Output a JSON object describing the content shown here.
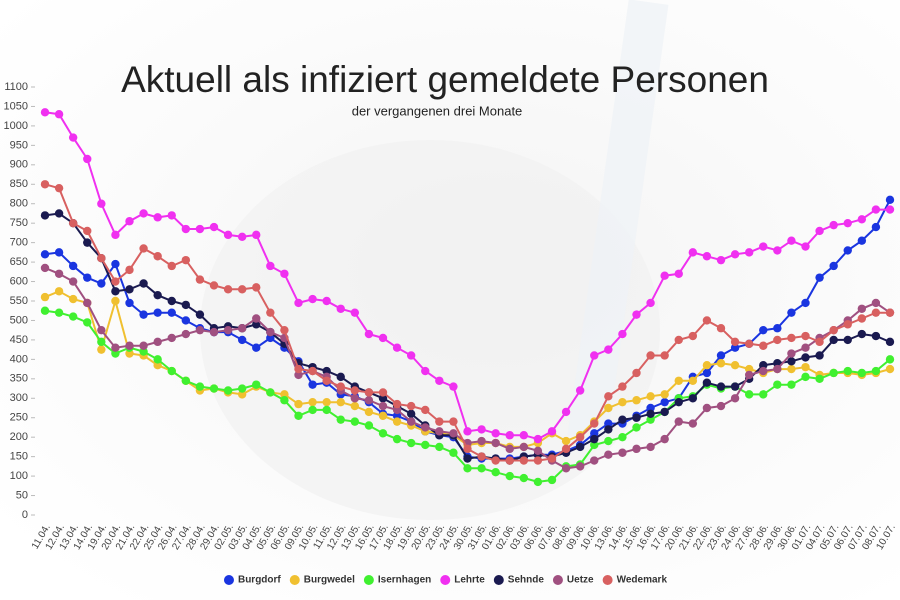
{
  "chart_data": {
    "type": "line",
    "title": "Aktuell als infiziert gemeldete Personen",
    "subtitle": "der vergangenen drei Monate",
    "categories": [
      "11.04.",
      "12.04.",
      "13.04.",
      "14.04.",
      "19.04.",
      "20.04.",
      "21.04.",
      "22.04.",
      "25.04.",
      "26.04.",
      "27.04.",
      "28.04.",
      "29.04.",
      "02.05.",
      "03.05.",
      "04.05.",
      "05.05.",
      "06.05.",
      "09.05.",
      "10.05.",
      "11.05.",
      "12.05.",
      "13.05.",
      "16.05.",
      "17.05.",
      "18.05.",
      "19.05.",
      "20.05.",
      "23.05.",
      "24.05.",
      "30.05.",
      "31.05.",
      "01.06.",
      "02.06.",
      "03.06.",
      "06.06.",
      "07.06.",
      "08.06.",
      "09.06.",
      "10.06.",
      "13.06.",
      "14.06.",
      "15.06.",
      "16.06.",
      "17.06.",
      "20.06.",
      "21.06.",
      "22.06.",
      "23.06.",
      "24.06.",
      "27.06.",
      "28.06.",
      "29.06.",
      "30.06.",
      "01.07.",
      "04.07.",
      "05.07.",
      "06.07.",
      "07.07.",
      "08.07.",
      "10.07."
    ],
    "series": [
      {
        "name": "Burgdorf",
        "color": "#1a35e0",
        "values": [
          670,
          675,
          640,
          610,
          595,
          645,
          545,
          515,
          520,
          520,
          500,
          480,
          470,
          470,
          450,
          430,
          455,
          430,
          395,
          335,
          340,
          310,
          305,
          290,
          260,
          255,
          240,
          215,
          205,
          200,
          150,
          145,
          145,
          145,
          150,
          155,
          155,
          165,
          180,
          210,
          235,
          235,
          255,
          275,
          290,
          300,
          355,
          365,
          410,
          430,
          440,
          475,
          480,
          520,
          545,
          610,
          640,
          680,
          705,
          740,
          810
        ]
      },
      {
        "name": "Burgwedel",
        "color": "#f0c030",
        "values": [
          560,
          575,
          555,
          545,
          425,
          550,
          415,
          410,
          385,
          370,
          345,
          320,
          325,
          315,
          310,
          330,
          315,
          310,
          285,
          290,
          290,
          290,
          280,
          265,
          255,
          240,
          230,
          215,
          210,
          205,
          180,
          185,
          185,
          175,
          175,
          185,
          210,
          190,
          205,
          240,
          275,
          290,
          295,
          305,
          310,
          345,
          345,
          385,
          390,
          385,
          375,
          365,
          375,
          375,
          380,
          360,
          365,
          365,
          360,
          365,
          375
        ]
      },
      {
        "name": "Isernhagen",
        "color": "#40f030",
        "values": [
          525,
          520,
          510,
          495,
          445,
          415,
          430,
          420,
          400,
          370,
          345,
          330,
          325,
          320,
          325,
          335,
          315,
          295,
          255,
          270,
          270,
          245,
          240,
          230,
          210,
          195,
          185,
          180,
          175,
          160,
          120,
          120,
          110,
          100,
          95,
          85,
          90,
          125,
          130,
          180,
          190,
          200,
          225,
          245,
          265,
          300,
          305,
          335,
          325,
          330,
          310,
          310,
          335,
          335,
          355,
          350,
          365,
          370,
          365,
          370,
          400
        ]
      },
      {
        "name": "Lehrte",
        "color": "#f030f0",
        "values": [
          1035,
          1030,
          970,
          915,
          800,
          720,
          755,
          775,
          765,
          770,
          735,
          735,
          740,
          720,
          715,
          720,
          640,
          620,
          545,
          555,
          550,
          530,
          520,
          465,
          455,
          430,
          410,
          370,
          345,
          330,
          215,
          220,
          210,
          205,
          205,
          195,
          215,
          265,
          320,
          410,
          425,
          465,
          515,
          545,
          615,
          620,
          675,
          665,
          655,
          670,
          675,
          690,
          680,
          705,
          690,
          730,
          745,
          750,
          760,
          785,
          785
        ]
      },
      {
        "name": "Sehnde",
        "color": "#1a1a50",
        "values": [
          770,
          775,
          750,
          700,
          660,
          575,
          580,
          595,
          565,
          550,
          540,
          515,
          480,
          485,
          480,
          490,
          470,
          440,
          390,
          380,
          370,
          355,
          330,
          315,
          300,
          280,
          260,
          230,
          205,
          205,
          145,
          150,
          145,
          140,
          150,
          155,
          150,
          160,
          175,
          195,
          220,
          245,
          250,
          260,
          265,
          290,
          300,
          340,
          330,
          330,
          350,
          385,
          390,
          395,
          405,
          410,
          450,
          450,
          465,
          460,
          445
        ]
      },
      {
        "name": "Uetze",
        "color": "#a05080",
        "values": [
          635,
          620,
          600,
          545,
          475,
          430,
          435,
          435,
          445,
          455,
          465,
          475,
          470,
          475,
          480,
          505,
          470,
          455,
          360,
          370,
          355,
          320,
          300,
          295,
          280,
          270,
          240,
          225,
          215,
          210,
          185,
          190,
          185,
          170,
          175,
          165,
          140,
          120,
          125,
          140,
          155,
          160,
          170,
          175,
          195,
          240,
          235,
          275,
          280,
          300,
          360,
          370,
          375,
          415,
          430,
          455,
          475,
          500,
          530,
          545,
          520
        ]
      },
      {
        "name": "Wedemark",
        "color": "#d86060",
        "values": [
          850,
          840,
          750,
          730,
          660,
          600,
          630,
          685,
          665,
          640,
          655,
          605,
          590,
          580,
          580,
          585,
          520,
          475,
          375,
          370,
          345,
          330,
          320,
          315,
          315,
          285,
          280,
          270,
          240,
          240,
          170,
          150,
          140,
          140,
          140,
          140,
          145,
          170,
          200,
          235,
          305,
          330,
          365,
          410,
          410,
          450,
          460,
          500,
          480,
          445,
          440,
          435,
          450,
          455,
          460,
          445,
          475,
          490,
          505,
          520,
          520
        ]
      }
    ],
    "ylim": [
      0,
      1100
    ],
    "yticks": [
      0,
      50,
      100,
      150,
      200,
      250,
      300,
      350,
      400,
      450,
      500,
      550,
      600,
      650,
      700,
      750,
      800,
      850,
      900,
      950,
      1000,
      1050,
      1100
    ],
    "legend": "bottom"
  }
}
